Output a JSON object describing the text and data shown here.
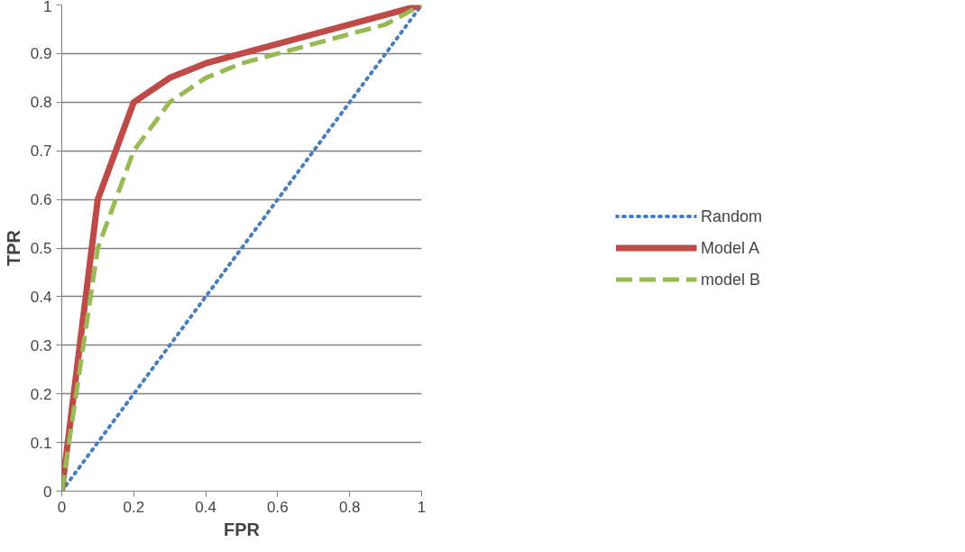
{
  "chart_data": {
    "type": "line",
    "xlabel": "FPR",
    "ylabel": "TPR",
    "x": [
      0,
      0.1,
      0.2,
      0.3,
      0.4,
      0.5,
      0.6,
      0.7,
      0.8,
      0.9,
      1
    ],
    "series": [
      {
        "name": "Random",
        "color": "#4a7ebb",
        "line_style": "dotted",
        "values": [
          0,
          0.1,
          0.2,
          0.3,
          0.4,
          0.5,
          0.6,
          0.7,
          0.8,
          0.9,
          1
        ]
      },
      {
        "name": "Model A",
        "color": "#be4b48",
        "line_style": "solid",
        "values": [
          0,
          0.6,
          0.8,
          0.85,
          0.88,
          0.9,
          0.92,
          0.94,
          0.96,
          0.98,
          1
        ]
      },
      {
        "name": "model B",
        "color": "#98b954",
        "line_style": "dashed",
        "values": [
          0,
          0.5,
          0.7,
          0.8,
          0.85,
          0.88,
          0.9,
          0.92,
          0.94,
          0.96,
          1
        ]
      }
    ],
    "xlim": [
      0,
      1
    ],
    "ylim": [
      0,
      1
    ],
    "xticks": [
      0,
      0.2,
      0.4,
      0.6,
      0.8,
      1
    ],
    "yticks": [
      0,
      0.1,
      0.2,
      0.3,
      0.4,
      0.5,
      0.6,
      0.7,
      0.8,
      0.9,
      1
    ],
    "grid": "y",
    "legend": "right",
    "marker": "none"
  }
}
